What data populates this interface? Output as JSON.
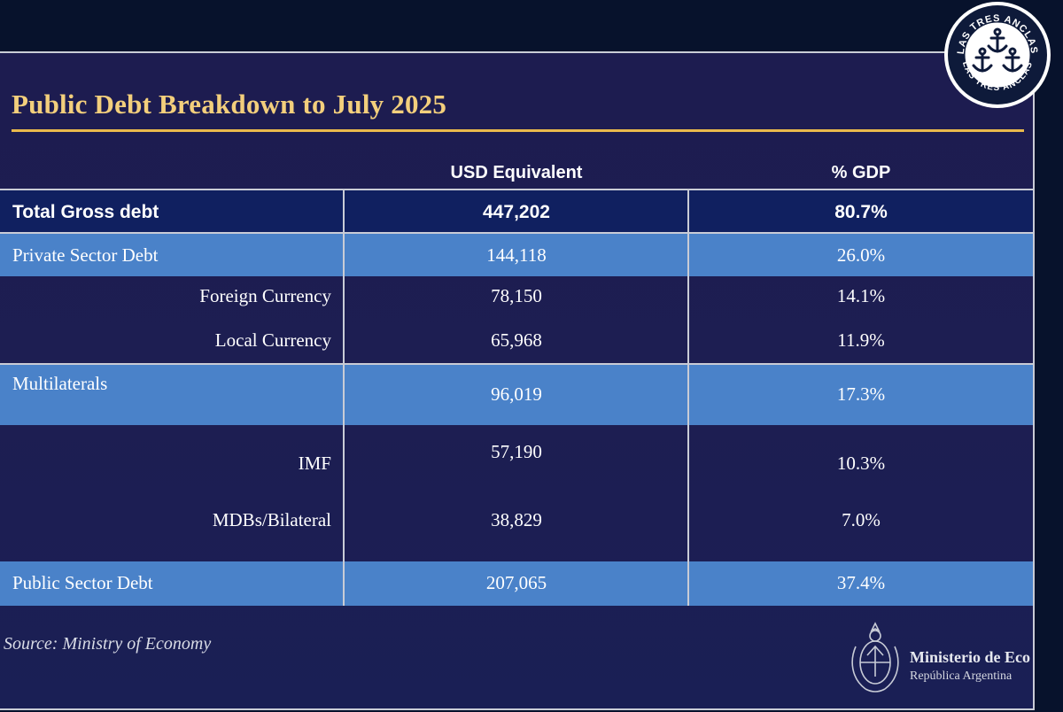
{
  "title": "Public Debt Breakdown to July 2025",
  "columns": {
    "usd": "USD Equivalent",
    "gdp": "% GDP"
  },
  "rows": {
    "total": {
      "label": "Total Gross debt",
      "usd": "447,202",
      "gdp": "80.7%"
    },
    "private": {
      "label": "Private Sector Debt",
      "usd": "144,118",
      "gdp": "26.0%"
    },
    "foreign": {
      "label": "Foreign Currency",
      "usd": "78,150",
      "gdp": "14.1%"
    },
    "local": {
      "label": "Local Currency",
      "usd": "65,968",
      "gdp": "11.9%"
    },
    "multilaterals": {
      "label": "Multilaterals",
      "usd": "96,019",
      "gdp": "17.3%"
    },
    "imf": {
      "label": "IMF",
      "usd": "57,190",
      "gdp": "10.3%"
    },
    "mdbs": {
      "label": "MDBs/Bilateral",
      "usd": "38,829",
      "gdp": "7.0%"
    },
    "public": {
      "label": "Public Sector Debt",
      "usd": "207,065",
      "gdp": "37.4%"
    }
  },
  "source": "Source: Ministry of Economy",
  "ministry": {
    "name": "Ministerio de Eco",
    "subtitle": "República Argentina"
  },
  "logo": {
    "text": "LAS TRES ANCLAS"
  },
  "colors": {
    "title": "#f3cf7c",
    "rule": "#e9b94c",
    "dark_row": "#102060",
    "light_row": "#4a82c9"
  }
}
